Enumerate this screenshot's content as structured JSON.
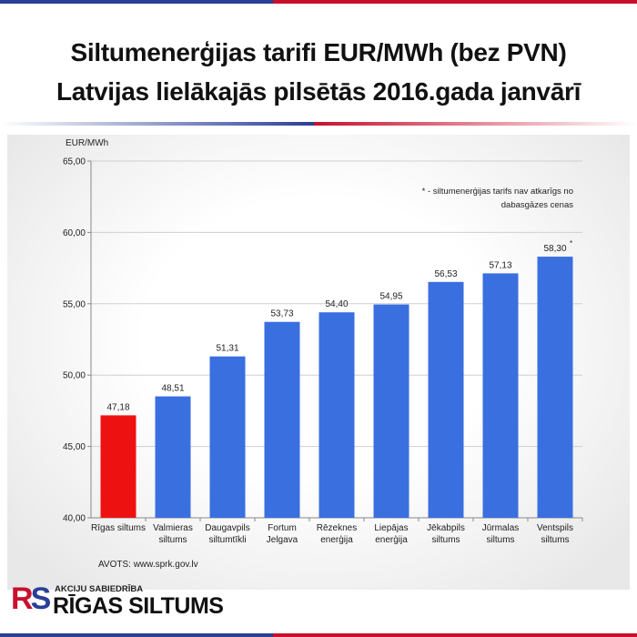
{
  "title_line1": "Siltumenerģijas tarifi EUR/MWh (bez PVN)",
  "title_line2": "Latvijas lielākajās pilsētās 2016.gada janvārī",
  "colors": {
    "bar": "#3a6fe0",
    "highlight_bar": "#ee1111",
    "brand_blue": "#2a3f96",
    "brand_red": "#c8102e"
  },
  "chart_data": {
    "type": "bar",
    "ylabel": "EUR/MWh",
    "ylim": [
      40,
      65
    ],
    "y_ticks": [
      "40,00",
      "45,00",
      "50,00",
      "55,00",
      "60,00",
      "65,00"
    ],
    "grid": true,
    "categories": [
      [
        "Rīgas siltums"
      ],
      [
        "Valmieras",
        "siltums"
      ],
      [
        "Daugavpils",
        "siltumtīkli"
      ],
      [
        "Fortum",
        "Jelgava"
      ],
      [
        "Rēzeknes",
        "enerģija"
      ],
      [
        "Liepājas",
        "enerģija"
      ],
      [
        "Jēkabpils",
        "siltums"
      ],
      [
        "Jūrmalas",
        "siltums"
      ],
      [
        "Ventspils",
        "siltums"
      ]
    ],
    "values": [
      47.18,
      48.51,
      51.31,
      53.73,
      54.4,
      54.95,
      56.53,
      57.13,
      58.3
    ],
    "value_labels": [
      "47,18",
      "48,51",
      "51,31",
      "53,73",
      "54,40",
      "54,95",
      "56,53",
      "57,13",
      "58,30"
    ],
    "highlight_index": 0,
    "asterisk_index": 8,
    "asterisk": "*",
    "note": "* - siltumenerģijas tarifs nav atkarīgs no dabasgāzes cenas"
  },
  "source": "AVOTS: www.sprk.gov.lv",
  "logo": {
    "mark_r": "R",
    "mark_s": "S",
    "small": "AKCIJU SABIEDRĪBA",
    "big": "RĪGAS SILTUMS"
  }
}
